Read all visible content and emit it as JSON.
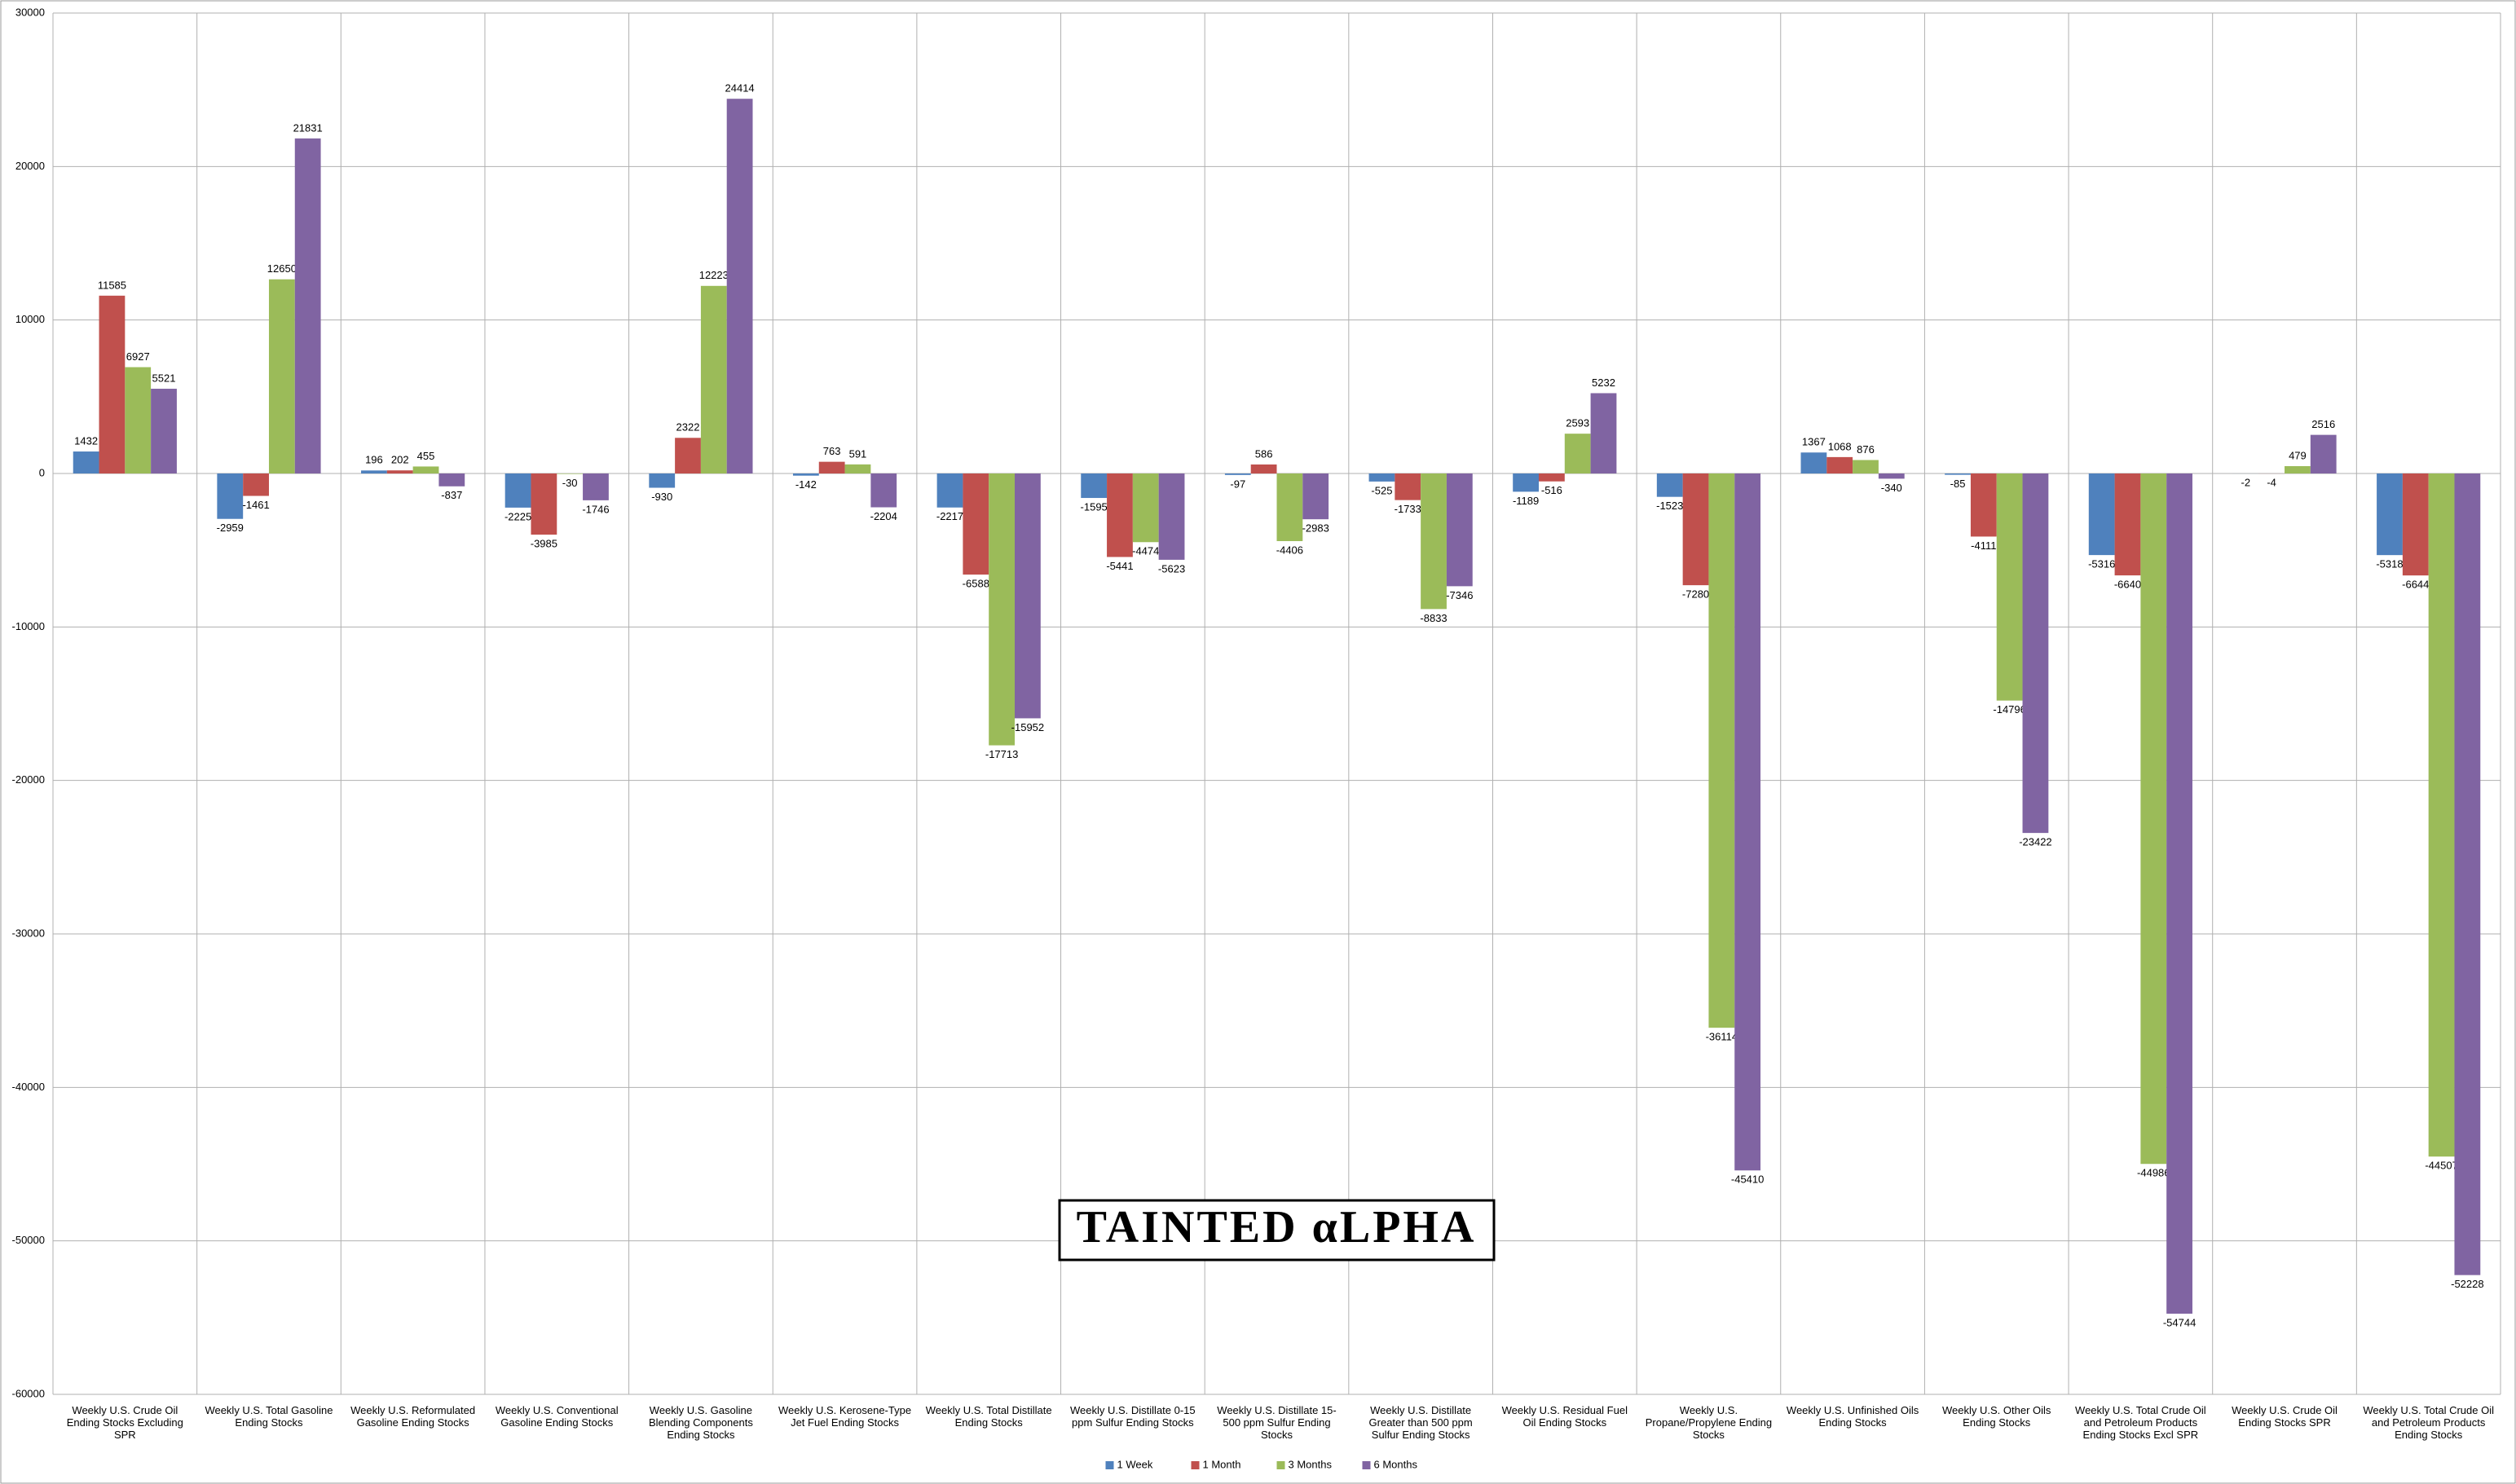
{
  "chart_data": {
    "type": "bar",
    "categories": [
      "Weekly U.S. Crude Oil Ending Stocks Excluding SPR",
      "Weekly U.S. Total Gasoline Ending Stocks",
      "Weekly U.S. Reformulated Gasoline Ending Stocks",
      "Weekly U.S. Conventional Gasoline Ending Stocks",
      "Weekly U.S. Gasoline Blending Components Ending Stocks",
      "Weekly U.S. Kerosene-Type Jet Fuel Ending Stocks",
      "Weekly U.S. Total Distillate Ending Stocks",
      "Weekly U.S. Distillate 0-15 ppm Sulfur Ending Stocks",
      "Weekly U.S. Distillate 15-500 ppm Sulfur Ending Stocks",
      "Weekly U.S. Distillate Greater than 500 ppm Sulfur Ending Stocks",
      "Weekly U.S. Residual Fuel Oil Ending Stocks",
      "Weekly U.S. Propane/Propylene Ending Stocks",
      "Weekly U.S. Unfinished Oils Ending Stocks",
      "Weekly U.S. Other Oils Ending Stocks",
      "Weekly U.S. Total Crude Oil and Petroleum Products Ending Stocks Excl SPR",
      "Weekly U.S. Crude Oil Ending Stocks SPR",
      "Weekly U.S. Total Crude Oil and Petroleum Products Ending Stocks"
    ],
    "series": [
      {
        "name": "1 Week",
        "color": "#4f81bd",
        "values": [
          1432,
          -2959,
          196,
          -2225,
          -930,
          -142,
          -2217,
          -1595,
          -97,
          -525,
          -1189,
          -1523,
          1367,
          -85,
          -5316,
          -2,
          -5318
        ]
      },
      {
        "name": "1 Month",
        "color": "#c0504d",
        "values": [
          11585,
          -1461,
          202,
          -3985,
          2322,
          763,
          -6588,
          -5441,
          586,
          -1733,
          -516,
          -7280,
          1068,
          -4111,
          -6640,
          -4,
          -6644
        ]
      },
      {
        "name": "3 Months",
        "color": "#9bbb59",
        "values": [
          6927,
          12650,
          455,
          -30,
          12223,
          591,
          -17713,
          -4474,
          -4406,
          -8833,
          2593,
          -36114,
          876,
          -14796,
          -44986,
          479,
          -44507
        ]
      },
      {
        "name": "6 Months",
        "color": "#8064a2",
        "values": [
          5521,
          21831,
          -837,
          -1746,
          24414,
          -2204,
          -15952,
          -5623,
          -2983,
          -7346,
          5232,
          -45410,
          -340,
          -23422,
          -54744,
          2516,
          -52228
        ]
      }
    ],
    "ylim": [
      -60000,
      30000
    ],
    "yticks": [
      -60000,
      -50000,
      -40000,
      -30000,
      -20000,
      -10000,
      0,
      10000,
      20000,
      30000
    ],
    "grid": true,
    "legend": "bottom",
    "watermark": "TAINTED αLPHA"
  }
}
